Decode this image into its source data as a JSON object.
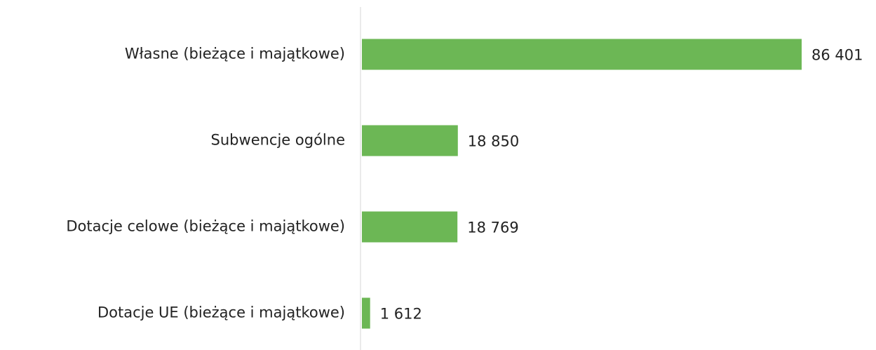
{
  "chart_data": {
    "type": "barh",
    "categories": [
      "Własne (bieżące i majątkowe)",
      "Subwencje ogólne",
      "Dotacje celowe (bieżące i majątkowe)",
      "Dotacje UE (bieżące i majątkowe)"
    ],
    "values": [
      86401,
      18850,
      18769,
      1612
    ],
    "value_labels": [
      "86 401",
      "18 850",
      "18 769",
      "1 612"
    ],
    "color": "#6cb755"
  }
}
